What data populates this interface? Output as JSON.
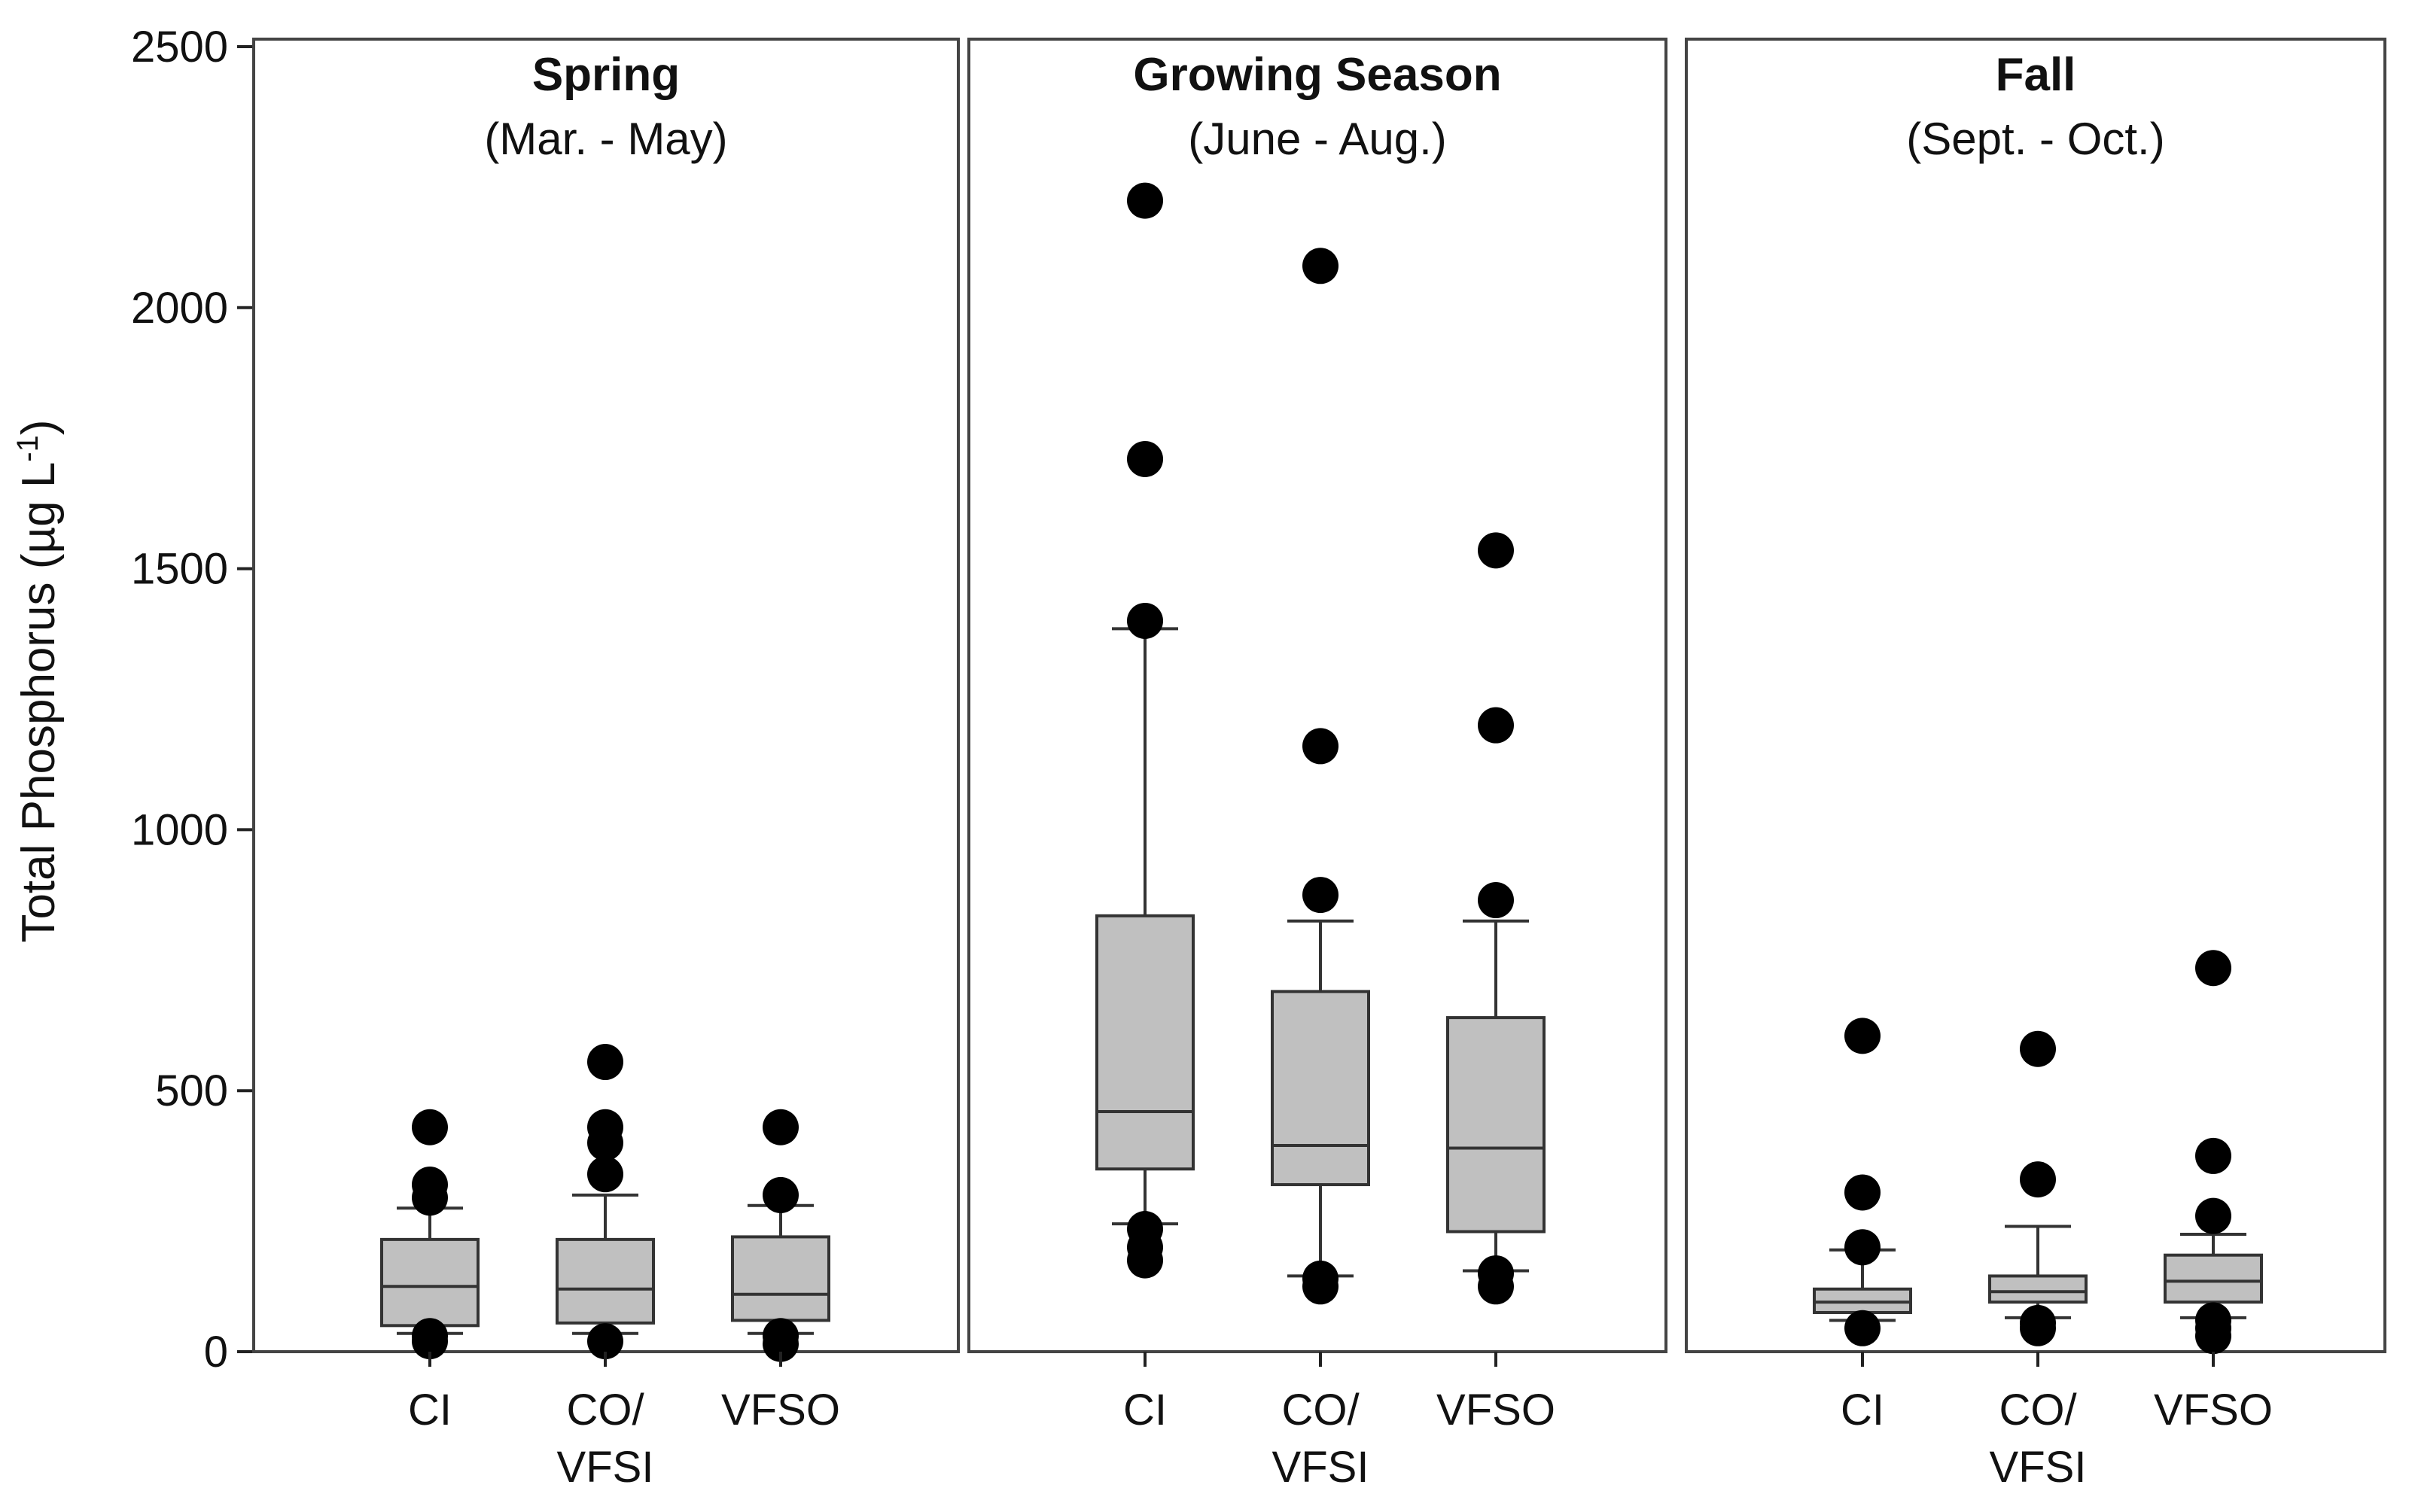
{
  "chart_data": {
    "type": "box",
    "ylabel": "Total Phosphorus (µg L",
    "ylabel_superscript": "-1",
    "ylabel_close": ")",
    "ylim": [
      0,
      2500
    ],
    "yticks": [
      0,
      500,
      1000,
      1500,
      2000,
      2500
    ],
    "colors": {
      "box_fill": "#c0c0c0",
      "outline": "#333333",
      "outlier": "#000000"
    },
    "panels": [
      {
        "title": "Spring",
        "subtitle": "(Mar. - May)",
        "groups": [
          {
            "label_lines": [
              "CI"
            ],
            "q1": 50,
            "median": 125,
            "q3": 215,
            "whisker_low": 35,
            "whisker_high": 275,
            "outliers": [
              20,
              30,
              295,
              320,
              430
            ]
          },
          {
            "label_lines": [
              "CO/",
              "VFSI"
            ],
            "q1": 55,
            "median": 120,
            "q3": 215,
            "whisker_low": 35,
            "whisker_high": 300,
            "outliers": [
              20,
              340,
              400,
              430,
              555
            ]
          },
          {
            "label_lines": [
              "VFSO"
            ],
            "q1": 60,
            "median": 110,
            "q3": 220,
            "whisker_low": 35,
            "whisker_high": 280,
            "outliers": [
              15,
              30,
              300,
              430
            ]
          }
        ]
      },
      {
        "title": "Growing Season",
        "subtitle": "(June - Aug.)",
        "groups": [
          {
            "label_lines": [
              "CI"
            ],
            "q1": 350,
            "median": 460,
            "q3": 835,
            "whisker_low": 245,
            "whisker_high": 1385,
            "outliers": [
              175,
              200,
              235,
              1400,
              1710,
              2205
            ]
          },
          {
            "label_lines": [
              "CO/",
              "VFSI"
            ],
            "q1": 320,
            "median": 395,
            "q3": 690,
            "whisker_low": 145,
            "whisker_high": 825,
            "outliers": [
              125,
              140,
              875,
              1160,
              2080
            ]
          },
          {
            "label_lines": [
              "VFSO"
            ],
            "q1": 230,
            "median": 390,
            "q3": 640,
            "whisker_low": 155,
            "whisker_high": 825,
            "outliers": [
              125,
              150,
              865,
              1200,
              1535
            ]
          }
        ]
      },
      {
        "title": "Fall",
        "subtitle": "(Sept. - Oct.)",
        "groups": [
          {
            "label_lines": [
              "CI"
            ],
            "q1": 75,
            "median": 95,
            "q3": 120,
            "whisker_low": 60,
            "whisker_high": 195,
            "outliers": [
              45,
              200,
              305,
              605
            ]
          },
          {
            "label_lines": [
              "CO/",
              "VFSI"
            ],
            "q1": 95,
            "median": 115,
            "q3": 145,
            "whisker_low": 65,
            "whisker_high": 240,
            "outliers": [
              45,
              55,
              330,
              580
            ]
          },
          {
            "label_lines": [
              "VFSO"
            ],
            "q1": 95,
            "median": 135,
            "q3": 185,
            "whisker_low": 65,
            "whisker_high": 225,
            "outliers": [
              30,
              45,
              60,
              260,
              375,
              735
            ]
          }
        ]
      }
    ]
  }
}
